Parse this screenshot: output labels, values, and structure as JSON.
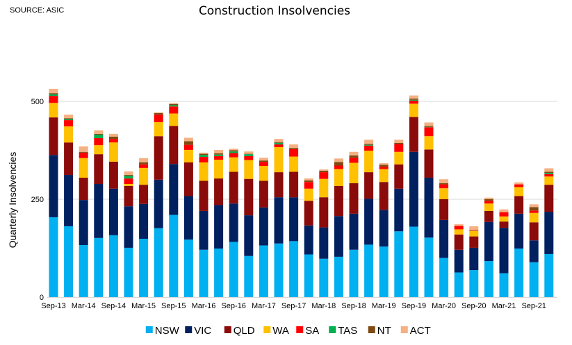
{
  "source": "SOURCE: ASIC",
  "chart_data": {
    "type": "bar",
    "stacked": true,
    "title": "Construction Insolvencies",
    "xlabel": "",
    "ylabel": "Quarterly Insolvencies",
    "ylim": [
      0,
      550
    ],
    "yticks": [
      0,
      250,
      500
    ],
    "grid": true,
    "legend_position": "bottom",
    "categories": [
      "Sep-13",
      "Dec-13",
      "Mar-14",
      "Jun-14",
      "Sep-14",
      "Dec-14",
      "Mar-15",
      "Jun-15",
      "Sep-15",
      "Dec-15",
      "Mar-16",
      "Jun-16",
      "Sep-16",
      "Dec-16",
      "Mar-17",
      "Jun-17",
      "Sep-17",
      "Dec-17",
      "Mar-18",
      "Jun-18",
      "Sep-18",
      "Dec-18",
      "Mar-19",
      "Jun-19",
      "Sep-19",
      "Dec-19",
      "Mar-20",
      "Jun-20",
      "Sep-20",
      "Dec-20",
      "Mar-21",
      "Jun-21",
      "Sep-21",
      "Dec-21"
    ],
    "tick_labels": [
      "Sep-13",
      "Mar-14",
      "Sep-14",
      "Mar-15",
      "Sep-15",
      "Mar-16",
      "Sep-16",
      "Mar-17",
      "Sep-17",
      "Mar-18",
      "Sep-18",
      "Mar-19",
      "Sep-19",
      "Mar-20",
      "Sep-20",
      "Mar-21",
      "Sep-21"
    ],
    "series": [
      {
        "name": "NSW",
        "color": "#00B0F0",
        "values": [
          204,
          181,
          133,
          151,
          158,
          126,
          149,
          176,
          210,
          147,
          121,
          124,
          141,
          105,
          132,
          137,
          143,
          109,
          98,
          103,
          121,
          134,
          129,
          168,
          180,
          152,
          100,
          63,
          69,
          92,
          61,
          124,
          89,
          110
        ]
      },
      {
        "name": "VIC",
        "color": "#002060",
        "values": [
          159,
          131,
          115,
          138,
          119,
          106,
          89,
          124,
          130,
          111,
          99,
          111,
          98,
          104,
          97,
          118,
          112,
          74,
          80,
          104,
          92,
          117,
          94,
          109,
          191,
          153,
          97,
          58,
          57,
          100,
          116,
          89,
          56,
          108
        ]
      },
      {
        "name": "QLD",
        "color": "#8B0A0A",
        "values": [
          96,
          83,
          57,
          76,
          69,
          52,
          49,
          111,
          97,
          86,
          77,
          68,
          81,
          93,
          68,
          64,
          65,
          63,
          77,
          77,
          78,
          68,
          71,
          62,
          89,
          72,
          53,
          39,
          29,
          28,
          16,
          45,
          46,
          69
        ]
      },
      {
        "name": "WA",
        "color": "#FFC000",
        "values": [
          37,
          41,
          50,
          23,
          49,
          5,
          43,
          36,
          32,
          32,
          47,
          48,
          37,
          48,
          38,
          64,
          39,
          31,
          47,
          43,
          52,
          55,
          33,
          32,
          34,
          34,
          28,
          13,
          14,
          19,
          13,
          23,
          24,
          21
        ]
      },
      {
        "name": "SA",
        "color": "#FF0000",
        "values": [
          18,
          16,
          14,
          18,
          9,
          14,
          9,
          19,
          18,
          13,
          14,
          9,
          11,
          10,
          10,
          7,
          19,
          17,
          17,
          9,
          13,
          13,
          6,
          20,
          8,
          23,
          10,
          9,
          1,
          7,
          11,
          7,
          6,
          6
        ]
      },
      {
        "name": "TAS",
        "color": "#00B050",
        "values": [
          4,
          2,
          0,
          9,
          0,
          7,
          0,
          0,
          3,
          0,
          5,
          4,
          4,
          5,
          0,
          4,
          0,
          0,
          0,
          0,
          0,
          2,
          0,
          0,
          2,
          1,
          0,
          0,
          0,
          0,
          0,
          0,
          0,
          3
        ]
      },
      {
        "name": "NT",
        "color": "#7F4A12",
        "values": [
          3,
          3,
          2,
          2,
          6,
          2,
          5,
          4,
          3,
          9,
          3,
          3,
          3,
          1,
          4,
          2,
          3,
          4,
          4,
          9,
          6,
          2,
          5,
          3,
          3,
          2,
          3,
          0,
          1,
          4,
          0,
          0,
          9,
          3
        ]
      },
      {
        "name": "ACT",
        "color": "#F4B183",
        "values": [
          11,
          9,
          14,
          9,
          7,
          9,
          11,
          2,
          3,
          9,
          3,
          9,
          4,
          6,
          7,
          8,
          9,
          5,
          3,
          9,
          9,
          11,
          4,
          8,
          8,
          9,
          10,
          4,
          10,
          4,
          7,
          5,
          7,
          9
        ]
      }
    ]
  }
}
